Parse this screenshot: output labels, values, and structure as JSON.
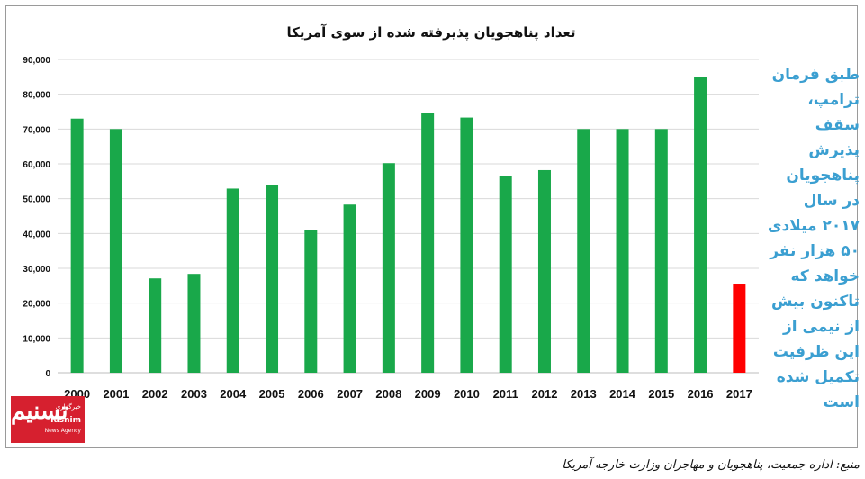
{
  "chart_data": {
    "type": "bar",
    "title": "تعداد پناهجویان پذیرفته شده از سوی آمریکا",
    "categories": [
      "2000",
      "2001",
      "2002",
      "2003",
      "2004",
      "2005",
      "2006",
      "2007",
      "2008",
      "2009",
      "2010",
      "2011",
      "2012",
      "2013",
      "2014",
      "2015",
      "2016",
      "2017"
    ],
    "values": [
      73000,
      70000,
      27100,
      28400,
      52900,
      53800,
      41100,
      48300,
      60200,
      74600,
      73300,
      56400,
      58200,
      70000,
      70000,
      70000,
      85000,
      25600
    ],
    "bar_colors": [
      "#19a84a",
      "#19a84a",
      "#19a84a",
      "#19a84a",
      "#19a84a",
      "#19a84a",
      "#19a84a",
      "#19a84a",
      "#19a84a",
      "#19a84a",
      "#19a84a",
      "#19a84a",
      "#19a84a",
      "#19a84a",
      "#19a84a",
      "#19a84a",
      "#19a84a",
      "#ff0000"
    ],
    "ylim": [
      0,
      90000
    ],
    "yticks": [
      "0",
      "10,000",
      "20,000",
      "30,000",
      "40,000",
      "50,000",
      "60,000",
      "70,000",
      "80,000",
      "90,000"
    ],
    "grid": true,
    "xlabel": "",
    "ylabel": ""
  },
  "side_note": "طبق فرمان ترامپ، سقف پذیرش پناهجویان در سال ۲۰۱۷ میلادی ۵۰ هزار نفر خواهد که تاکنون بیش از نیمی از این ظرفیت تکمیل شده است",
  "logo": {
    "text": "تسنیم",
    "subtitle": "خبرگزاری",
    "name": "Tasnim",
    "tagline": "News Agency"
  },
  "source": "منبع: اداره جمعیت، پناهجویان و مهاجران وزارت خارجه آمریکا",
  "colors": {
    "bar": "#19a84a",
    "highlight_bar": "#ff0000",
    "note_text": "#3b9fd1",
    "logo_bg": "#d6202f"
  }
}
